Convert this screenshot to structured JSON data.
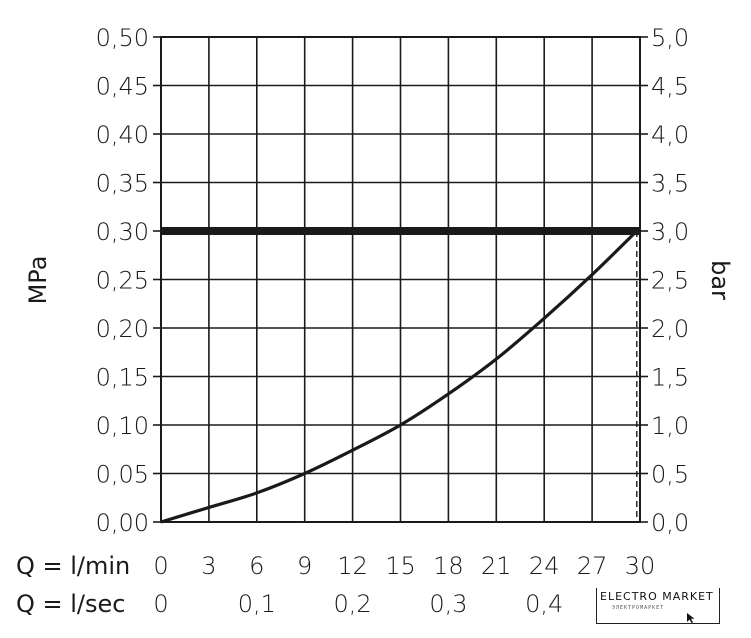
{
  "chart_data": {
    "type": "line",
    "x_label_lpm": "Q = l/min",
    "x_label_lps": "Q = l/sec",
    "x_ticks_lpm": [
      "0",
      "3",
      "6",
      "9",
      "12",
      "15",
      "18",
      "21",
      "24",
      "27",
      "30"
    ],
    "x_ticks_lps": [
      "0",
      "0,1",
      "0,2",
      "0,3",
      "0,4"
    ],
    "x_ticks_lps_values": [
      0,
      6,
      12,
      18,
      24
    ],
    "xlim": [
      0,
      30
    ],
    "y_left_label": "MPa",
    "y_left_ticks": [
      "0,00",
      "0,05",
      "0,10",
      "0,15",
      "0,20",
      "0,25",
      "0,30",
      "0,35",
      "0,40",
      "0,45",
      "0,50"
    ],
    "ylim": [
      0,
      0.5
    ],
    "y_right_label": "bar",
    "y_right_ticks": [
      "0,0",
      "0,5",
      "1,0",
      "1,5",
      "2,0",
      "2,5",
      "3,0",
      "3,5",
      "4,0",
      "4,5",
      "5,0"
    ],
    "grid": true,
    "series": [
      {
        "x": [
          0,
          3,
          6,
          9,
          12,
          15,
          18,
          21,
          24,
          27,
          29.8
        ],
        "y": [
          0,
          0.015,
          0.03,
          0.05,
          0.074,
          0.1,
          0.132,
          0.168,
          0.21,
          0.255,
          0.3
        ]
      }
    ],
    "reference_line_y": 0.3,
    "reference_drop_x": 29.8
  },
  "logo": {
    "text": "ELECTRO MARKET",
    "subtext": "ЭЛЕКТРОМАРКЕТ"
  }
}
